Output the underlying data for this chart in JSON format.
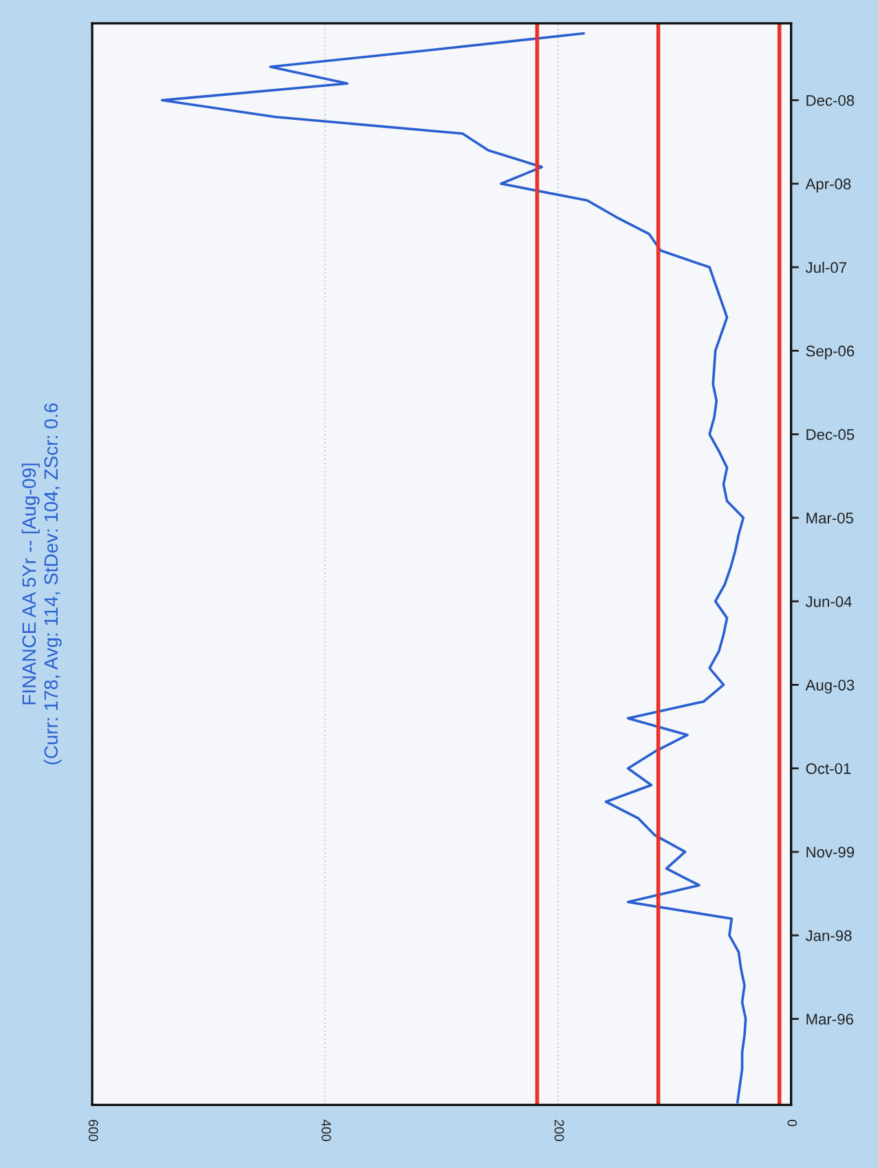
{
  "chart_data": {
    "type": "line",
    "orientation": "horizontal",
    "title": "FINANCE AA 5Yr -- [Aug-09]",
    "subtitle": "(Curr: 178, Avg: 114, StDev: 104, ZScr: 0.6",
    "categories": [
      null,
      null,
      null,
      null,
      "Dec-08",
      null,
      null,
      null,
      null,
      "Apr-08",
      null,
      null,
      null,
      null,
      "Jul-07",
      null,
      null,
      null,
      null,
      "Sep-06",
      null,
      null,
      null,
      null,
      "Dec-05",
      null,
      null,
      null,
      null,
      "Mar-05",
      null,
      null,
      null,
      null,
      "Jun-04",
      null,
      null,
      null,
      null,
      "Aug-03",
      null,
      null,
      null,
      null,
      "Oct-01",
      null,
      null,
      null,
      null,
      "Nov-99",
      null,
      null,
      null,
      null,
      "Jan-98",
      null,
      null,
      null,
      null,
      "Mar-96",
      null,
      null,
      null,
      null,
      null
    ],
    "series": [
      {
        "color": "#2a5fd0",
        "values": [
          178,
          310,
          447,
          381,
          540,
          443,
          282,
          260,
          214,
          249,
          175,
          150,
          122,
          112,
          70,
          65,
          60,
          55,
          60,
          65,
          66,
          67,
          64,
          66,
          70,
          62,
          55,
          58,
          55,
          41,
          45,
          48,
          52,
          57,
          65,
          55,
          58,
          62,
          70,
          58,
          75,
          140,
          89,
          117,
          140,
          120,
          159,
          131,
          117,
          91,
          107,
          79,
          140,
          51,
          53,
          45,
          43,
          40,
          42,
          39,
          40,
          42,
          42,
          44,
          46
        ]
      }
    ],
    "xlim": [
      600,
      0
    ],
    "xticks": [
      600,
      400,
      200,
      0
    ],
    "ref_lines": [
      {
        "axis": "x",
        "value": 218,
        "color": "#e8322a"
      },
      {
        "axis": "x",
        "value": 114,
        "color": "#e8322a"
      },
      {
        "axis": "x",
        "value": 10,
        "color": "#e8322a"
      }
    ],
    "grid": "x",
    "legend": false
  }
}
